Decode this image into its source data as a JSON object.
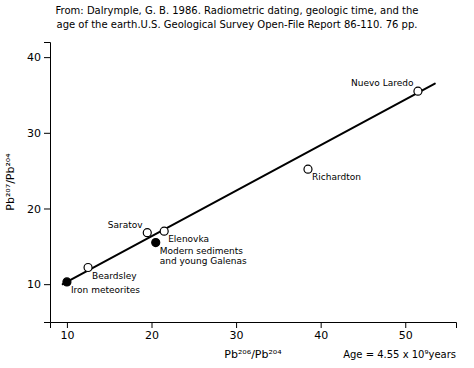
{
  "chart_data": {
    "type": "scatter",
    "title": "From: Dalrymple, G. B. 1986. Radiometric dating, geologic time, and the",
    "subtitle": "    age of the earth.U.S. Geological Survey Open-File Report 86-110. 76 pp.",
    "xlabel": "Pb²⁰⁶/Pb²⁰⁴",
    "ylabel": "Pb²⁰⁷/Pb²⁰⁴",
    "annotations": [
      "Age = 4.55 x 10⁹years"
    ],
    "xlim": [
      8,
      56
    ],
    "ylim": [
      5,
      42
    ],
    "xticks": [
      10,
      20,
      30,
      40,
      50
    ],
    "yticks": [
      10,
      20,
      30,
      40
    ],
    "series": [
      {
        "type": "line",
        "line_style": "solid",
        "color": "#000000",
        "x": [
          9.5,
          53.5
        ],
        "values": [
          10.0,
          36.5
        ]
      },
      {
        "type": "scatter",
        "marker": "circle-open",
        "color": "#000000",
        "x": [
          12.5,
          19.5,
          21.5,
          38.5,
          51.5
        ],
        "values": [
          12.2,
          16.8,
          17.0,
          25.2,
          35.5
        ],
        "labels": [
          "Beardsley",
          "Saratov",
          "Elenovka",
          "Richardton",
          "Nuevo Laredo"
        ]
      },
      {
        "type": "scatter",
        "marker": "circle",
        "color": "#000000",
        "x": [
          10.0,
          20.5
        ],
        "values": [
          10.3,
          15.5
        ],
        "labels": [
          "Iron meteorites",
          "Modern sediments\nand young Galenas"
        ]
      }
    ]
  }
}
